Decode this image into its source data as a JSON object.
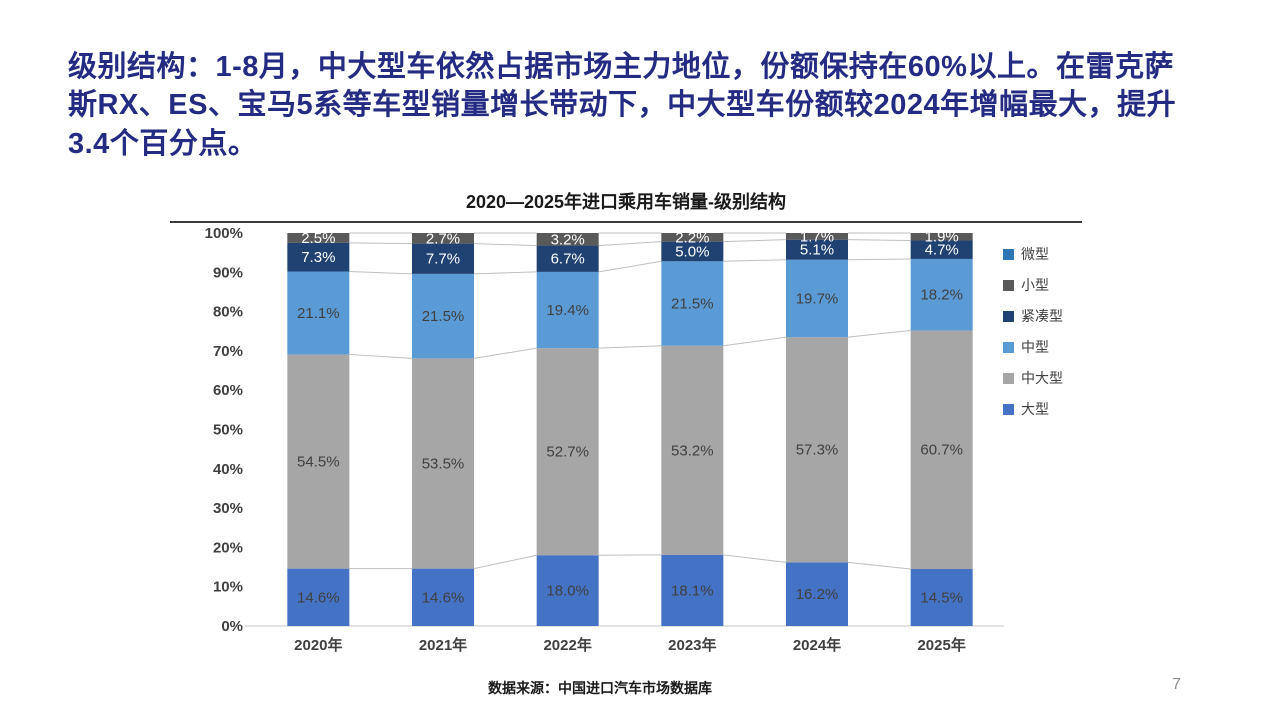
{
  "slide": {
    "headline": "级别结构：1-8月，中大型车依然占据市场主力地位，份额保持在60%以上。在雷克萨斯RX、ES、宝马5系等车型销量增长带动下，中大型车份额较2024年增幅最大，提升3.4个百分点。",
    "headline_color": "#232B82",
    "footer_source": "数据来源：中国进口汽车市场数据库",
    "page_number": "7"
  },
  "chart_data": {
    "type": "bar",
    "stacked": true,
    "title": "2020—2025年进口乘用车销量-级别结构",
    "categories": [
      "2020年",
      "2021年",
      "2022年",
      "2023年",
      "2024年",
      "2025年"
    ],
    "series": [
      {
        "name": "大型",
        "color": "#4472C4",
        "label_color": "#404040",
        "values": [
          14.6,
          14.6,
          18.0,
          18.1,
          16.2,
          14.5
        ],
        "labels": [
          "14.6%",
          "14.6%",
          "18.0%",
          "18.1%",
          "16.2%",
          "14.5%"
        ]
      },
      {
        "name": "中大型",
        "color": "#A6A6A6",
        "label_color": "#404040",
        "values": [
          54.5,
          53.5,
          52.7,
          53.2,
          57.3,
          60.7
        ],
        "labels": [
          "54.5%",
          "53.5%",
          "52.7%",
          "53.2%",
          "57.3%",
          "60.7%"
        ]
      },
      {
        "name": "中型",
        "color": "#5B9BD5",
        "label_color": "#404040",
        "values": [
          21.1,
          21.5,
          19.4,
          21.5,
          19.7,
          18.2
        ],
        "labels": [
          "21.1%",
          "21.5%",
          "19.4%",
          "21.5%",
          "19.7%",
          "18.2%"
        ]
      },
      {
        "name": "紧凑型",
        "color": "#1F4273",
        "label_color": "#FFFFFF",
        "values": [
          7.3,
          7.7,
          6.7,
          5.0,
          5.1,
          4.7
        ],
        "labels": [
          "7.3%",
          "7.7%",
          "6.7%",
          "5.0%",
          "5.1%",
          "4.7%"
        ]
      },
      {
        "name": "小型",
        "color": "#595959",
        "label_color": "#FFFFFF",
        "values": [
          2.5,
          2.7,
          3.2,
          2.2,
          1.7,
          1.9
        ],
        "labels": [
          "2.5%",
          "2.7%",
          "3.2%",
          "2.2%",
          "1.7%",
          "1.9%"
        ]
      },
      {
        "name": "微型",
        "color": "#2E75B6",
        "label_color": "#FFFFFF",
        "values": [
          0,
          0,
          0,
          0,
          0,
          0
        ],
        "labels": [
          "",
          "",
          "",
          "",
          "",
          ""
        ]
      }
    ],
    "legend_order_note": "legend shown top-to-bottom is reverse of stacking order (bottom segment first in series list)",
    "legend_position": "right",
    "y_axis": {
      "min": 0,
      "max": 100,
      "step": 10,
      "format": "percent"
    },
    "grid": false,
    "connector_line_color": "#BFBFBF",
    "axis_line_color": "#C6C6C6"
  }
}
